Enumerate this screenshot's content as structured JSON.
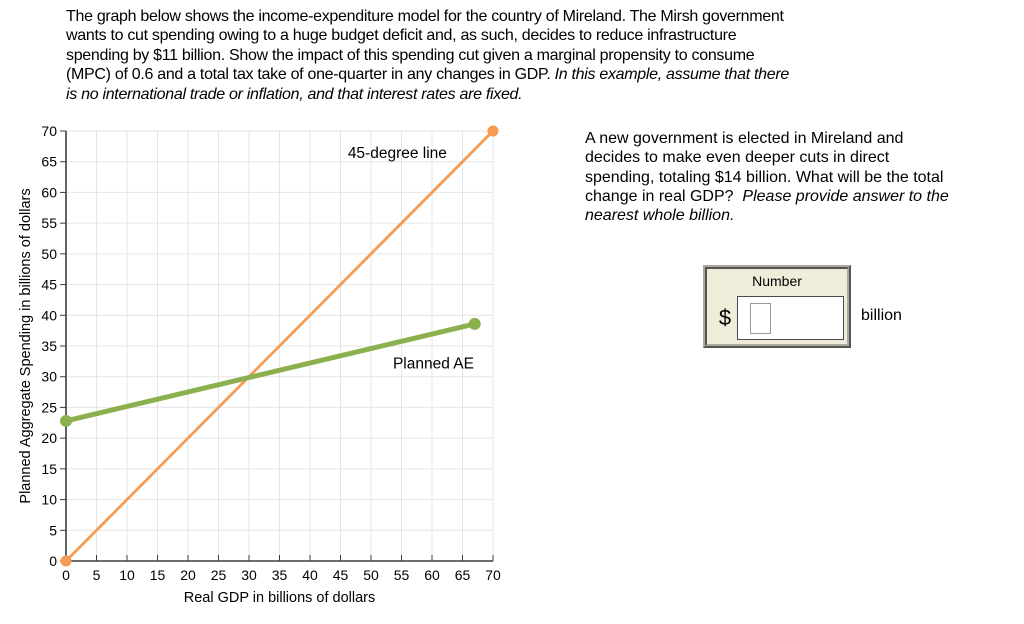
{
  "instructions": {
    "lines": [
      {
        "normal": "The graph below shows the income-expenditure model for the country of Mireland. The Mirsh government",
        "italic": ""
      },
      {
        "normal": "wants to cut spending owing to a huge budget deficit and, as such, decides to reduce infrastructure",
        "italic": ""
      },
      {
        "normal": "spending by $11 billion. Show the impact of this spending cut given a marginal propensity to consume",
        "italic": ""
      },
      {
        "normal": "(MPC) of 0.6 and a total tax take of one-quarter in any changes in GDP. ",
        "italic": "In this example, assume that there"
      },
      {
        "normal": "",
        "italic": "is no international trade or inflation, and that interest rates are fixed."
      }
    ]
  },
  "question": {
    "lines": [
      {
        "normal": "A new government is elected in Mireland and",
        "italic": ""
      },
      {
        "normal": "decides to make even deeper cuts in direct",
        "italic": ""
      },
      {
        "normal": "spending, totaling $14 billion. What will be the total",
        "italic": ""
      },
      {
        "normal": "change in real GDP?  ",
        "italic": "Please provide answer to the"
      },
      {
        "normal": "",
        "italic": "nearest whole billion."
      }
    ]
  },
  "answer_box": {
    "label": "Number",
    "currency_symbol": "$",
    "unit": "billion",
    "value": "",
    "panel_color": "#F0ECDA"
  },
  "chart_data": {
    "type": "line",
    "title": "",
    "xlabel": "Real GDP in billions of dollars",
    "ylabel": "Planned Aggregate Spending in billions of dollars",
    "xlim": [
      0,
      70
    ],
    "ylim": [
      0,
      70
    ],
    "xticks": [
      0,
      5,
      10,
      15,
      20,
      25,
      30,
      35,
      40,
      45,
      50,
      55,
      60,
      65,
      70
    ],
    "yticks": [
      0,
      5,
      10,
      15,
      20,
      25,
      30,
      35,
      40,
      45,
      50,
      55,
      60,
      65,
      70
    ],
    "grid": true,
    "legend_position": "inline-annotations",
    "colors": {
      "grid": "#E6E6E6",
      "axis": "#3D3D3D",
      "text": "#000000"
    },
    "series": [
      {
        "name": "45-degree line",
        "color": "#F79B51",
        "line_width": 2.8,
        "marker_radius": 5.5,
        "points": [
          [
            0,
            0
          ],
          [
            70,
            70
          ]
        ]
      },
      {
        "name": "Planned AE",
        "color": "#8CB04D",
        "line_width": 5,
        "marker_radius": 6,
        "points": [
          [
            0,
            22.8
          ],
          [
            67,
            38.6
          ]
        ]
      }
    ],
    "annotations": [
      {
        "text": "45-degree line",
        "x": 46.2,
        "y": 65.6
      },
      {
        "text": "Planned AE",
        "x": 53.6,
        "y": 31.3
      }
    ]
  }
}
